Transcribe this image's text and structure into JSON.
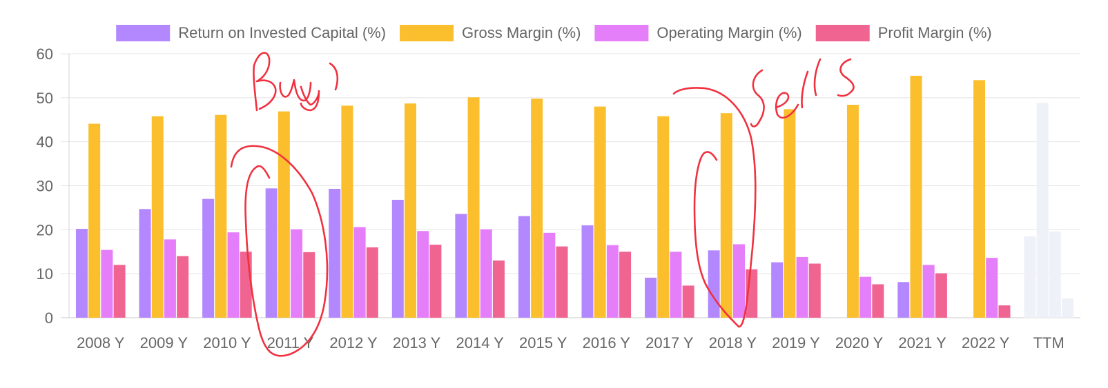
{
  "chart_data": {
    "type": "bar",
    "categories": [
      "2008 Y",
      "2009 Y",
      "2010 Y",
      "2011 Y",
      "2012 Y",
      "2013 Y",
      "2014 Y",
      "2015 Y",
      "2016 Y",
      "2017 Y",
      "2018 Y",
      "2019 Y",
      "2020 Y",
      "2021 Y",
      "2022 Y",
      "TTM"
    ],
    "ylim": [
      0,
      60
    ],
    "yticks": [
      0,
      10,
      20,
      30,
      40,
      50,
      60
    ],
    "grid": true,
    "legend_position": "top",
    "series": [
      {
        "name": "Return on Invested Capital (%)",
        "color": "#b388ff",
        "values": [
          20.2,
          24.7,
          27.0,
          29.4,
          29.3,
          26.8,
          23.6,
          23.1,
          21.0,
          9.1,
          15.3,
          12.6,
          0,
          8.1,
          0,
          18.5
        ]
      },
      {
        "name": "Gross Margin (%)",
        "color": "#fbbf2d",
        "values": [
          44.1,
          45.8,
          46.1,
          46.9,
          48.2,
          48.7,
          50.1,
          49.8,
          48.0,
          45.8,
          46.5,
          47.4,
          48.4,
          55.0,
          54.0,
          48.8
        ]
      },
      {
        "name": "Operating Margin (%)",
        "color": "#e57ff9",
        "values": [
          15.4,
          17.8,
          19.4,
          20.1,
          20.6,
          19.7,
          20.1,
          19.3,
          16.5,
          15.0,
          16.7,
          13.8,
          9.3,
          12.0,
          13.6,
          19.6
        ]
      },
      {
        "name": "Profit Margin (%)",
        "color": "#f06491",
        "values": [
          12.0,
          14.0,
          15.0,
          14.9,
          16.0,
          16.6,
          13.0,
          16.2,
          15.0,
          7.3,
          11.0,
          12.3,
          7.6,
          10.1,
          2.8,
          4.4
        ]
      }
    ],
    "faded_categories": [
      "TTM"
    ],
    "faded_color": "#eef1f8",
    "annotations": {
      "buy_text": "Buy",
      "sell_text": "Sells",
      "color": "#f0313f"
    }
  }
}
